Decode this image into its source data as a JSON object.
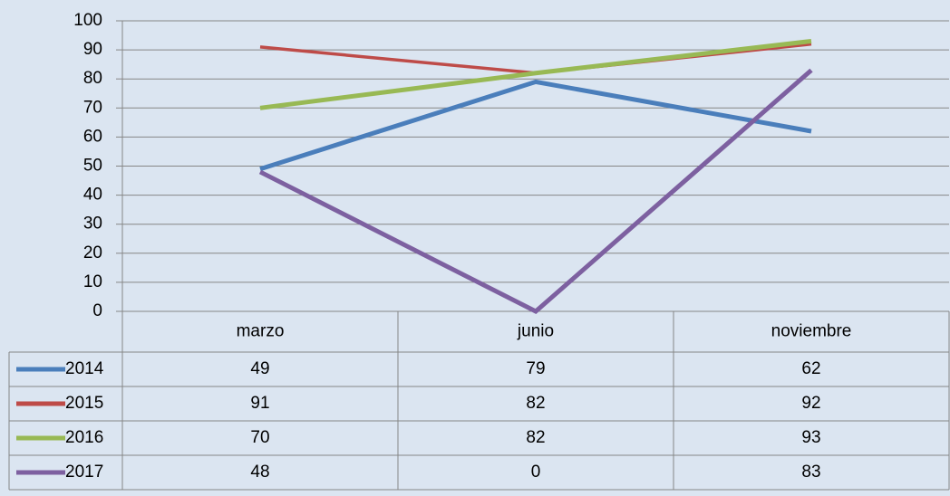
{
  "chart_data": {
    "type": "line",
    "categories": [
      "marzo",
      "junio",
      "noviembre"
    ],
    "series": [
      {
        "name": "2014",
        "color": "#4a7ebb",
        "values": [
          49,
          79,
          62
        ]
      },
      {
        "name": "2015",
        "color": "#be4b48",
        "values": [
          91,
          82,
          92
        ]
      },
      {
        "name": "2016",
        "color": "#98b954",
        "values": [
          70,
          82,
          93
        ]
      },
      {
        "name": "2017",
        "color": "#7d60a0",
        "values": [
          48,
          0,
          83
        ]
      }
    ],
    "ylim": [
      0,
      100
    ],
    "yticks": [
      0,
      10,
      20,
      30,
      40,
      50,
      60,
      70,
      80,
      90,
      100
    ],
    "grid": true,
    "data_table": true
  }
}
